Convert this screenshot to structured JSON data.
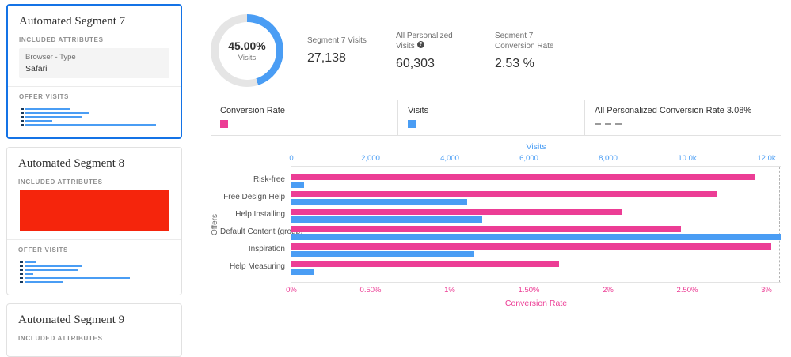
{
  "colors": {
    "blue": "#4a9df4",
    "pink": "#ec3d95",
    "red": "#f5250c",
    "border": "#e1e1e1",
    "dark": "#323232",
    "gray": "#6e6e6e"
  },
  "sidebar": {
    "cards": [
      {
        "title": "Automated Segment 7",
        "attributes_header": "INCLUDED ATTRIBUTES",
        "attribute": {
          "type": "Browser - Type",
          "value": "Safari"
        },
        "offer_visits_header": "OFFER VISITS",
        "selected": true,
        "minibars": [
          30,
          43,
          38,
          18,
          88
        ]
      },
      {
        "title": "Automated Segment 8",
        "attributes_header": "INCLUDED ATTRIBUTES",
        "offer_visits_header": "OFFER VISITS",
        "selected": false,
        "minibars": [
          8,
          38,
          35,
          6,
          70,
          25
        ]
      },
      {
        "title": "Automated Segment 9",
        "attributes_header": "INCLUDED ATTRIBUTES",
        "selected": false
      }
    ]
  },
  "summary": {
    "donut": {
      "percent": 45,
      "percent_label": "45.00%",
      "sub_label": "Visits"
    },
    "stats": [
      {
        "label": "Segment 7 Visits",
        "value": "27,138"
      },
      {
        "label": "All Personalized Visits",
        "value": "60,303",
        "info_icon": "?"
      },
      {
        "label": "Segment 7 Conversion Rate",
        "value": "2.53 %"
      }
    ]
  },
  "legend": {
    "conversion_rate": "Conversion Rate",
    "visits": "Visits",
    "all_personalized": "All Personalized Conversion Rate 3.08%"
  },
  "chart_data": {
    "type": "bar",
    "orientation": "horizontal",
    "title": "",
    "ylabel": "Offers",
    "categories": [
      "Risk-free",
      "Free Design Help",
      "Help Installing",
      "Default Content (group)",
      "Inspiration",
      "Help Measuring"
    ],
    "series": [
      {
        "name": "Conversion Rate",
        "axis": "bottom",
        "unit": "%",
        "values": [
          2.93,
          2.69,
          2.09,
          2.46,
          3.03,
          1.69
        ]
      },
      {
        "name": "Visits",
        "axis": "top",
        "unit": "visits",
        "values": [
          320,
          4430,
          4816,
          12390,
          4620,
          560
        ]
      }
    ],
    "top_axis": {
      "label": "Visits",
      "ticks": [
        "0",
        "2,000",
        "4,000",
        "6,000",
        "8,000",
        "10.0k",
        "12.0k"
      ],
      "tick_step": 2000,
      "range": [
        0,
        12360
      ]
    },
    "bottom_axis": {
      "label": "Conversion Rate",
      "ticks": [
        "0%",
        "0.50%",
        "1%",
        "1.50%",
        "2%",
        "2.50%",
        "3%"
      ],
      "tick_step": 0.5,
      "range": [
        0,
        3.09
      ]
    },
    "reference_line": {
      "name": "All Personalized Conversion Rate",
      "value": 3.08
    },
    "grid": false,
    "legend_position": "top"
  }
}
